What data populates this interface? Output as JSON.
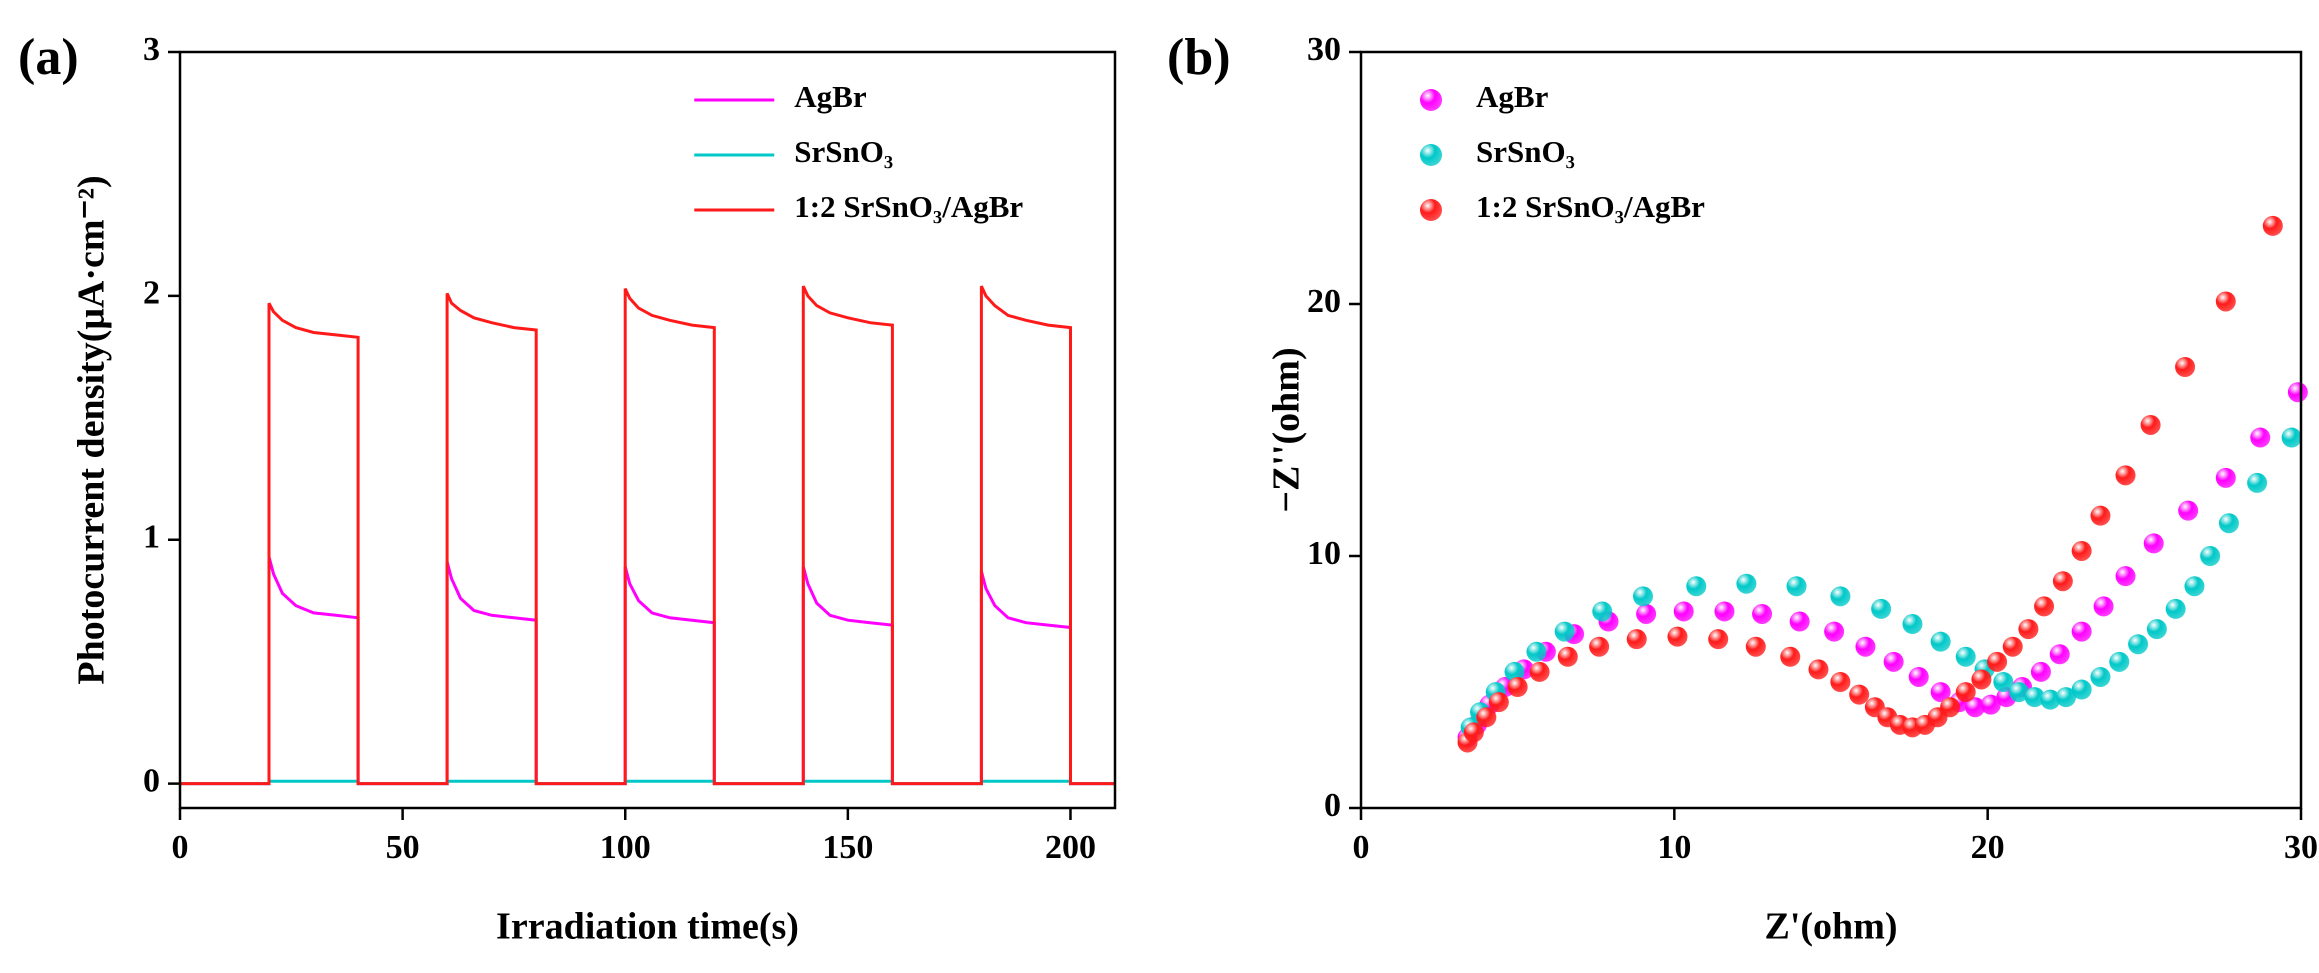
{
  "chart_data": [
    {
      "type": "line",
      "panel_label": "(a)",
      "x_label": "Irradiation time(s)",
      "y_label": "Photocurrent density(μA·cm⁻²)",
      "xlim": [
        0,
        210
      ],
      "xticks": [
        0,
        50,
        100,
        150,
        200
      ],
      "ylim": [
        -0.1,
        3
      ],
      "yticks": [
        0,
        1,
        2,
        3
      ],
      "legend": "upper right",
      "x": [
        0,
        20,
        20,
        21,
        23,
        26,
        30,
        35,
        40,
        40,
        60,
        60,
        61,
        63,
        66,
        70,
        75,
        80,
        80,
        100,
        100,
        101,
        103,
        106,
        110,
        115,
        120,
        120,
        140,
        140,
        141,
        143,
        146,
        150,
        155,
        160,
        160,
        180,
        180,
        181,
        183,
        186,
        190,
        195,
        200,
        200,
        210
      ],
      "series": [
        {
          "name": "AgBr",
          "color": "#ff00ff",
          "values": [
            0,
            0,
            0.93,
            0.86,
            0.78,
            0.73,
            0.7,
            0.69,
            0.68,
            0,
            0,
            0.91,
            0.84,
            0.76,
            0.71,
            0.69,
            0.68,
            0.67,
            0,
            0,
            0.89,
            0.82,
            0.75,
            0.7,
            0.68,
            0.67,
            0.66,
            0,
            0,
            0.89,
            0.82,
            0.74,
            0.69,
            0.67,
            0.66,
            0.65,
            0,
            0,
            0.87,
            0.8,
            0.73,
            0.68,
            0.66,
            0.65,
            0.64,
            0,
            0
          ]
        },
        {
          "name": "SrSnO₃",
          "color": "#00c8c8",
          "values": [
            0,
            0,
            0.01,
            0.01,
            0.01,
            0.01,
            0.01,
            0.01,
            0.01,
            0,
            0,
            0.01,
            0.01,
            0.01,
            0.01,
            0.01,
            0.01,
            0.01,
            0,
            0,
            0.01,
            0.01,
            0.01,
            0.01,
            0.01,
            0.01,
            0.01,
            0,
            0,
            0.01,
            0.01,
            0.01,
            0.01,
            0.01,
            0.01,
            0.01,
            0,
            0,
            0.01,
            0.01,
            0.01,
            0.01,
            0.01,
            0.01,
            0.01,
            0,
            0
          ]
        },
        {
          "name": "1:2 SrSnO₃/AgBr",
          "color": "#ff1a1a",
          "values": [
            0,
            0,
            1.97,
            1.935,
            1.9,
            1.87,
            1.85,
            1.84,
            1.83,
            0,
            0,
            2.01,
            1.97,
            1.94,
            1.91,
            1.89,
            1.87,
            1.86,
            0,
            0,
            2.03,
            1.99,
            1.95,
            1.92,
            1.9,
            1.88,
            1.87,
            0,
            0,
            2.04,
            2.0,
            1.96,
            1.93,
            1.91,
            1.89,
            1.88,
            0,
            0,
            2.04,
            2.0,
            1.96,
            1.92,
            1.9,
            1.88,
            1.87,
            0,
            0
          ]
        }
      ]
    },
    {
      "type": "scatter",
      "panel_label": "(b)",
      "x_label": "Z'(ohm)",
      "y_label": "−Z''(ohm)",
      "xlim": [
        0,
        30
      ],
      "xticks": [
        0,
        10,
        20,
        30
      ],
      "ylim": [
        0,
        30
      ],
      "yticks": [
        0,
        10,
        20,
        30
      ],
      "legend": "upper left",
      "series": [
        {
          "name": "AgBr",
          "color": "#ff00ff",
          "x": [
            3.4,
            3.7,
            4.1,
            4.6,
            5.2,
            5.9,
            6.8,
            7.9,
            9.1,
            10.3,
            11.6,
            12.8,
            14.0,
            15.1,
            16.1,
            17.0,
            17.8,
            18.5,
            19.1,
            19.6,
            20.1,
            20.6,
            21.1,
            21.7,
            22.3,
            23.0,
            23.7,
            24.4,
            25.3,
            26.4,
            27.6,
            28.7,
            29.9
          ],
          "values": [
            2.8,
            3.3,
            4.1,
            4.8,
            5.5,
            6.2,
            6.9,
            7.4,
            7.7,
            7.8,
            7.8,
            7.7,
            7.4,
            7.0,
            6.4,
            5.8,
            5.2,
            4.6,
            4.2,
            4.0,
            4.1,
            4.4,
            4.8,
            5.4,
            6.1,
            7.0,
            8.0,
            9.2,
            10.5,
            11.8,
            13.1,
            14.7,
            16.5
          ]
        },
        {
          "name": "SrSnO₃",
          "color": "#00c8c8",
          "x": [
            3.5,
            3.8,
            4.3,
            4.9,
            5.6,
            6.5,
            7.7,
            9.0,
            10.7,
            12.3,
            13.9,
            15.3,
            16.6,
            17.6,
            18.5,
            19.3,
            19.9,
            20.5,
            21.0,
            21.5,
            22.0,
            22.5,
            23.0,
            23.6,
            24.2,
            24.8,
            25.4,
            26.0,
            26.6,
            27.1,
            27.7,
            28.6,
            29.7
          ],
          "values": [
            3.2,
            3.8,
            4.6,
            5.4,
            6.2,
            7.0,
            7.8,
            8.4,
            8.8,
            8.9,
            8.8,
            8.4,
            7.9,
            7.3,
            6.6,
            6.0,
            5.5,
            5.0,
            4.6,
            4.4,
            4.3,
            4.4,
            4.7,
            5.2,
            5.8,
            6.5,
            7.1,
            7.9,
            8.8,
            10.0,
            11.3,
            12.9,
            14.7
          ]
        },
        {
          "name": "1:2 SrSnO₃/AgBr",
          "color": "#ff1a1a",
          "x": [
            3.4,
            3.6,
            4.0,
            4.4,
            5.0,
            5.7,
            6.6,
            7.6,
            8.8,
            10.1,
            11.4,
            12.6,
            13.7,
            14.6,
            15.3,
            15.9,
            16.4,
            16.8,
            17.2,
            17.6,
            18.0,
            18.4,
            18.8,
            19.3,
            19.8,
            20.3,
            20.8,
            21.3,
            21.8,
            22.4,
            23.0,
            23.6,
            24.4,
            25.2,
            26.3,
            27.6,
            29.1
          ],
          "values": [
            2.6,
            3.0,
            3.6,
            4.2,
            4.8,
            5.4,
            6.0,
            6.4,
            6.7,
            6.8,
            6.7,
            6.4,
            6.0,
            5.5,
            5.0,
            4.5,
            4.0,
            3.6,
            3.3,
            3.2,
            3.3,
            3.6,
            4.0,
            4.6,
            5.1,
            5.8,
            6.4,
            7.1,
            8.0,
            9.0,
            10.2,
            11.6,
            13.2,
            15.2,
            17.5,
            20.1,
            23.1
          ]
        }
      ]
    }
  ]
}
